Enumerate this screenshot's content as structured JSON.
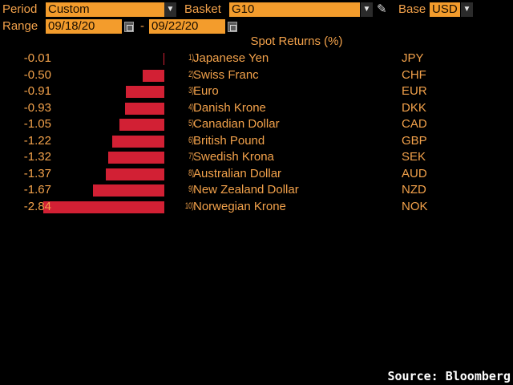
{
  "header": {
    "period_label": "Period",
    "period_value": "Custom",
    "basket_label": "Basket",
    "basket_value": "G10",
    "base_label": "Base",
    "base_value": "USD",
    "range_label": "Range",
    "range_start": "09/18/20",
    "range_separator": "-",
    "range_end": "09/22/20"
  },
  "chart_data": {
    "type": "bar",
    "title": "Spot Returns (%)",
    "rows": [
      {
        "value": -0.01,
        "value_label": "-0.01",
        "rank": "1)",
        "name": "Japanese Yen",
        "code": "JPY"
      },
      {
        "value": -0.5,
        "value_label": "-0.50",
        "rank": "2)",
        "name": "Swiss Franc",
        "code": "CHF"
      },
      {
        "value": -0.91,
        "value_label": "-0.91",
        "rank": "3)",
        "name": "Euro",
        "code": "EUR"
      },
      {
        "value": -0.93,
        "value_label": "-0.93",
        "rank": "4)",
        "name": "Danish Krone",
        "code": "DKK"
      },
      {
        "value": -1.05,
        "value_label": "-1.05",
        "rank": "5)",
        "name": "Canadian Dollar",
        "code": "CAD"
      },
      {
        "value": -1.22,
        "value_label": "-1.22",
        "rank": "6)",
        "name": "British Pound",
        "code": "GBP"
      },
      {
        "value": -1.32,
        "value_label": "-1.32",
        "rank": "7)",
        "name": "Swedish Krona",
        "code": "SEK"
      },
      {
        "value": -1.37,
        "value_label": "-1.37",
        "rank": "8)",
        "name": "Australian Dollar",
        "code": "AUD"
      },
      {
        "value": -1.67,
        "value_label": "-1.67",
        "rank": "9)",
        "name": "New Zealand Dollar",
        "code": "NZD"
      },
      {
        "value": -2.84,
        "value_label": "-2.84",
        "rank": "10)",
        "name": "Norwegian Krone",
        "code": "NOK"
      }
    ],
    "bar_color": "#d22034"
  },
  "footer": {
    "source": "Source: Bloomberg"
  },
  "icons": {
    "dropdown": "chevron-down-icon",
    "calendar": "calendar-icon",
    "edit": "pencil-icon"
  }
}
